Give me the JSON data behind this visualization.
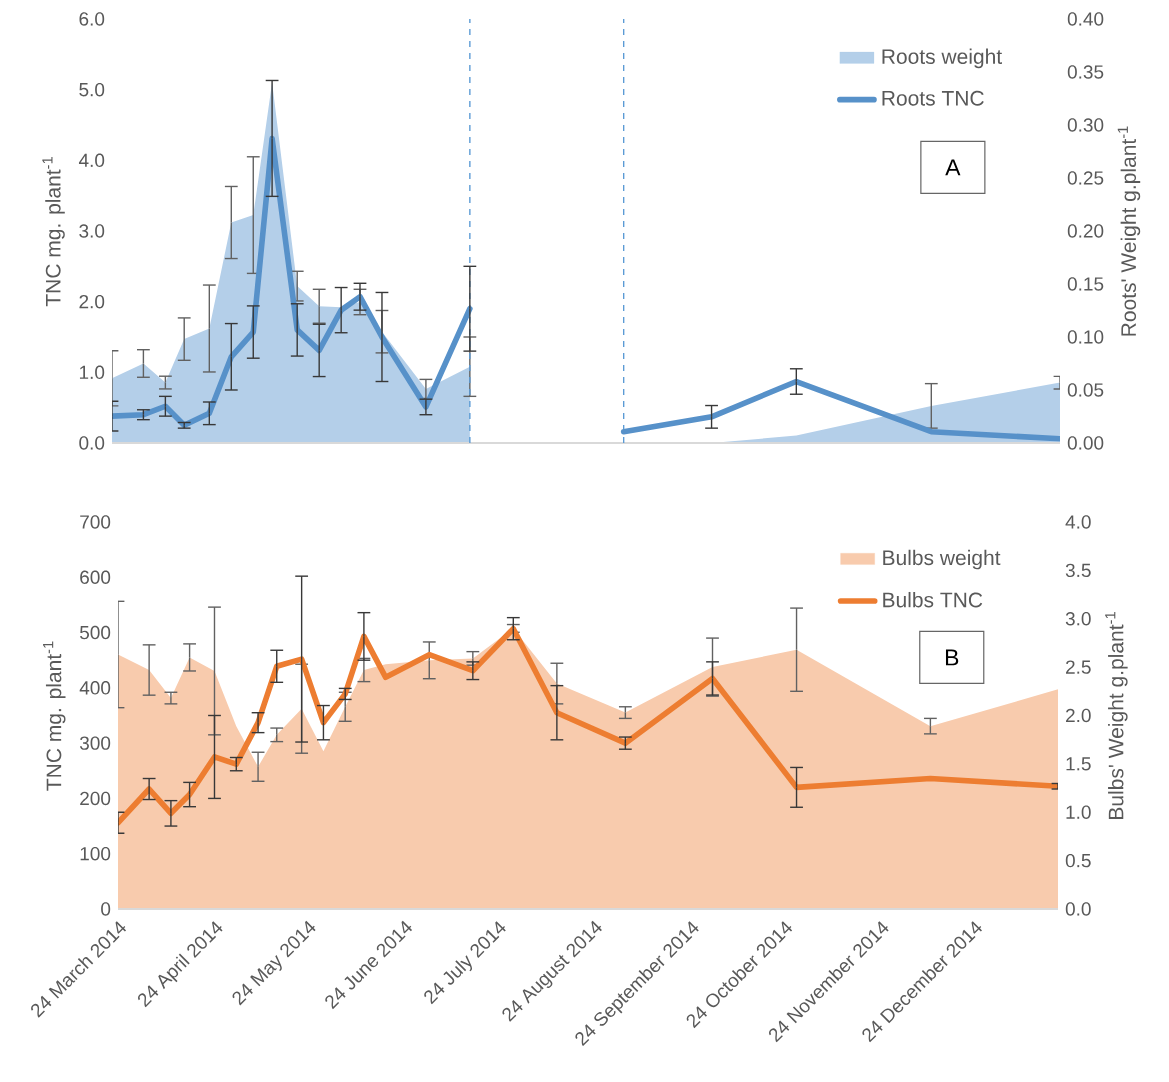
{
  "chart_data": [
    {
      "type": "line",
      "x": [
        "2014-03-24",
        "2014-04-03",
        "2014-04-10",
        "2014-04-16",
        "2014-04-24",
        "2014-05-01",
        "2014-05-08",
        "2014-05-14",
        "2014-05-22",
        "2014-05-29",
        "2014-06-05",
        "2014-06-11",
        "2014-06-18",
        "2014-07-02",
        "2014-07-16",
        "2014-07-29",
        "2014-08-12",
        "2014-09-03",
        "2014-10-01",
        "2014-10-28",
        "2014-12-10",
        "2015-01-20"
      ],
      "xlim": [
        "2014-03-24",
        "2015-01-20"
      ],
      "ylim": [
        0,
        6
      ],
      "yticks": [
        {
          "value": 0,
          "label": "0.0"
        },
        {
          "value": 1,
          "label": "1.0"
        },
        {
          "value": 2,
          "label": "2.0"
        },
        {
          "value": 3,
          "label": "3.0"
        },
        {
          "value": 4,
          "label": "4.0"
        },
        {
          "value": 5,
          "label": "5.0"
        },
        {
          "value": 6,
          "label": "6.0"
        }
      ],
      "y2lim": [
        0,
        0.4
      ],
      "y2ticks": [
        {
          "value": 0,
          "label": "0.00"
        },
        {
          "value": 0.05,
          "label": "0.05"
        },
        {
          "value": 0.1,
          "label": "0.10"
        },
        {
          "value": 0.15,
          "label": "0.15"
        },
        {
          "value": 0.2,
          "label": "0.20"
        },
        {
          "value": 0.25,
          "label": "0.25"
        },
        {
          "value": 0.3,
          "label": "0.30"
        },
        {
          "value": 0.35,
          "label": "0.35"
        },
        {
          "value": 0.4,
          "label": "0.40"
        }
      ],
      "ylabel": "TNC mg. plant$^{-1}$",
      "y2label": "Roots' Weight g.plant$^{-1}$",
      "tick_labels": "y",
      "legend": "top right",
      "annotations": [
        "A"
      ],
      "ref_lines": [
        {
          "axis": "x",
          "value": "2014-07-16",
          "color": "#5b9bd5",
          "line_style": "dashed"
        },
        {
          "axis": "x",
          "value": "2014-09-03",
          "color": "#5b9bd5",
          "line_style": "dashed"
        }
      ],
      "series": [
        {
          "name": "Roots weight",
          "type": "area",
          "axis": "y2",
          "color": "#b4cfe9",
          "values": [
            0.061,
            0.075,
            0.057,
            0.098,
            0.108,
            0.208,
            0.215,
            0.34,
            0.148,
            0.129,
            0.128,
            0.133,
            0.105,
            0.051,
            0.072,
            null,
            null,
            0,
            0,
            0.007,
            0.035,
            0.057
          ],
          "errors": [
            0.026,
            0.013,
            0.006,
            0.02,
            0.041,
            0.034,
            0.055,
            null,
            0.014,
            0.016,
            null,
            0.012,
            0.02,
            0.009,
            0.028,
            null,
            null,
            null,
            null,
            null,
            0.021,
            0.006
          ]
        },
        {
          "name": "Roots TNC",
          "color": "#5791c9",
          "values": [
            0.38,
            0.4,
            0.52,
            0.25,
            0.42,
            1.22,
            1.57,
            4.31,
            1.6,
            1.31,
            1.88,
            2.07,
            1.5,
            0.51,
            1.9,
            null,
            null,
            0.16,
            0.37,
            0.87,
            0.16,
            0.06
          ],
          "errors": [
            0.21,
            0.07,
            0.14,
            0.04,
            0.16,
            0.47,
            0.37,
            0.82,
            0.37,
            0.37,
            0.32,
            0.19,
            0.63,
            0.11,
            0.6,
            null,
            null,
            null,
            0.16,
            0.18,
            null,
            null
          ]
        }
      ]
    },
    {
      "type": "line",
      "x": [
        "2014-03-24",
        "2014-04-03",
        "2014-04-10",
        "2014-04-16",
        "2014-04-24",
        "2014-05-01",
        "2014-05-08",
        "2014-05-14",
        "2014-05-22",
        "2014-05-29",
        "2014-06-05",
        "2014-06-11",
        "2014-06-18",
        "2014-07-02",
        "2014-07-16",
        "2014-07-29",
        "2014-08-12",
        "2014-09-03",
        "2014-10-01",
        "2014-10-28",
        "2014-12-10",
        "2015-01-20"
      ],
      "xlim": [
        "2014-03-24",
        "2015-01-20"
      ],
      "xticks": [
        {
          "value": "2014-03-24",
          "label": "24 March 2014"
        },
        {
          "value": "2014-04-24",
          "label": "24 April 2014"
        },
        {
          "value": "2014-05-24",
          "label": "24 May 2014"
        },
        {
          "value": "2014-06-24",
          "label": "24 June 2014"
        },
        {
          "value": "2014-07-24",
          "label": "24 July 2014"
        },
        {
          "value": "2014-08-24",
          "label": "24 August 2014"
        },
        {
          "value": "2014-09-24",
          "label": "24 September 2014"
        },
        {
          "value": "2014-10-24",
          "label": "24 October 2014"
        },
        {
          "value": "2014-11-24",
          "label": "24 November 2014"
        },
        {
          "value": "2014-12-24",
          "label": "24 December 2014"
        }
      ],
      "ylim": [
        0,
        700
      ],
      "yticks": [
        0,
        100,
        200,
        300,
        400,
        500,
        600,
        700
      ],
      "y2lim": [
        0,
        4
      ],
      "y2ticks": [
        {
          "value": 0,
          "label": "0.0"
        },
        {
          "value": 0.5,
          "label": "0.5"
        },
        {
          "value": 1,
          "label": "1.0"
        },
        {
          "value": 1.5,
          "label": "1.5"
        },
        {
          "value": 2,
          "label": "2.0"
        },
        {
          "value": 2.5,
          "label": "2.5"
        },
        {
          "value": 3,
          "label": "3.0"
        },
        {
          "value": 3.5,
          "label": "3.5"
        },
        {
          "value": 4,
          "label": "4.0"
        }
      ],
      "ylabel": "TNC mg. plant$^{-1}$",
      "y2label": "Bulbs' Weight g.plant$^{-1}$",
      "legend": "top right",
      "annotations": [
        "B"
      ],
      "series": [
        {
          "name": "Bulbs weight",
          "type": "area",
          "axis": "y2",
          "color": "#f8cbad",
          "values": [
            2.63,
            2.47,
            2.18,
            2.6,
            2.46,
            1.89,
            1.47,
            1.8,
            2.07,
            1.63,
            2.09,
            2.47,
            2.53,
            2.57,
            2.59,
            2.9,
            2.33,
            2.03,
            2.5,
            2.68,
            1.89,
            2.27
          ],
          "errors": [
            0.55,
            0.26,
            0.06,
            0.14,
            0.66,
            null,
            0.15,
            0.07,
            0.46,
            null,
            0.15,
            0.12,
            null,
            0.19,
            0.07,
            0.04,
            0.21,
            0.06,
            0.3,
            0.43,
            0.08,
            null
          ]
        },
        {
          "name": "Bulbs TNC",
          "color": "#ed7d31",
          "values": [
            156,
            217,
            173,
            207,
            275,
            262,
            337,
            439,
            452,
            337,
            389,
            493,
            419,
            460,
            431,
            507,
            355,
            300,
            417,
            220,
            236,
            222
          ],
          "errors": [
            19,
            19,
            23,
            22,
            75,
            12,
            18,
            29,
            150,
            31,
            10,
            43,
            null,
            null,
            16,
            20,
            49,
            11,
            30,
            36,
            null,
            5
          ]
        }
      ]
    }
  ]
}
